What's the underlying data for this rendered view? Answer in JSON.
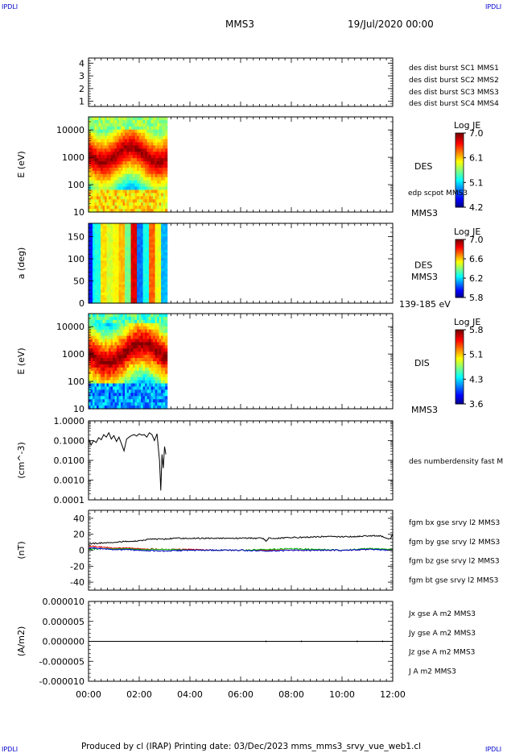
{
  "header": {
    "corner_tl": "IPDLI",
    "corner_tr": "IPDLI",
    "corner_bl": "IPDLI",
    "corner_br": "IPDLI",
    "spacecraft": "MMS3",
    "datetime": "19/Jul/2020 00:00"
  },
  "footer": {
    "text": "Produced by cl (IRAP)   Printing date: 03/Dec/2023   mms_mms3_srvy_vue_web1.cl"
  },
  "colors": {
    "mms1": "#0000cc",
    "mms2": "#cc00cc",
    "mms3": "#dd0000",
    "mms4": "#00bb00",
    "bx": "#dd0000",
    "by": "#00bb00",
    "bz": "#0000cc",
    "bt": "#000000"
  },
  "chart_data": [
    {
      "type": "line",
      "panel": "burst",
      "ylabel": "",
      "yticks": [
        "1",
        "2",
        "3",
        "4"
      ],
      "ylim": [
        0.6,
        4.4
      ],
      "legend": [
        {
          "label": "des dist burst SC1 MMS1",
          "color": "#0000cc"
        },
        {
          "label": "des dist burst SC2 MMS2",
          "color": "#cc00cc"
        },
        {
          "label": "des dist burst SC3 MMS3",
          "color": "#dd0000"
        },
        {
          "label": "des dist burst SC4 MMS4",
          "color": "#00bb00"
        }
      ],
      "series": []
    },
    {
      "type": "heatmap",
      "panel": "des-energy",
      "ylabel": "E (eV)",
      "yscale": "log",
      "ylim": [
        10,
        30000
      ],
      "yticks": [
        "10",
        "100",
        "1000",
        "10000"
      ],
      "data_extent_hours": [
        0,
        3.1
      ],
      "instrument": "DES",
      "overlay_label": "edp scpot MMS3",
      "sc_label": "MMS3",
      "colorbar": {
        "title": "Log JE",
        "ticks": [
          "7.0",
          "6.1",
          "5.1",
          "4.2"
        ],
        "range": [
          4.2,
          7.0
        ]
      }
    },
    {
      "type": "heatmap",
      "panel": "des-pitch",
      "ylabel": "a (deg)",
      "ylim": [
        0,
        180
      ],
      "yticks": [
        "0",
        "50",
        "100",
        "150"
      ],
      "data_extent_hours": [
        0,
        3.1
      ],
      "instrument": "DES",
      "sc_label": "MMS3",
      "energy_label": "139-185 eV",
      "colorbar": {
        "title": "Log JE",
        "ticks": [
          "7.0",
          "6.6",
          "6.2",
          "5.8"
        ],
        "range": [
          5.8,
          7.0
        ]
      }
    },
    {
      "type": "heatmap",
      "panel": "dis-energy",
      "ylabel": "E (eV)",
      "yscale": "log",
      "ylim": [
        10,
        30000
      ],
      "yticks": [
        "10",
        "100",
        "1000",
        "10000"
      ],
      "data_extent_hours": [
        0,
        3.1
      ],
      "instrument": "DIS",
      "sc_label": "MMS3",
      "colorbar": {
        "title": "Log JE",
        "ticks": [
          "5.8",
          "5.1",
          "4.3",
          "3.6"
        ],
        "range": [
          3.6,
          5.8
        ]
      }
    },
    {
      "type": "line",
      "panel": "density",
      "ylabel": "(cm^-3)",
      "yscale": "log",
      "ylim": [
        0.0001,
        1.0
      ],
      "yticks": [
        "0.0001",
        "0.0010",
        "0.0100",
        "0.1000",
        "1.0000"
      ],
      "legend": [
        {
          "label": "des numberdensity fast M",
          "color": "#000000"
        }
      ],
      "series": [
        {
          "name": "des numberdensity fast M",
          "color": "#000000",
          "x": [
            0.0,
            0.1,
            0.2,
            0.3,
            0.4,
            0.5,
            0.6,
            0.7,
            0.8,
            0.9,
            1.0,
            1.1,
            1.2,
            1.3,
            1.4,
            1.5,
            1.6,
            1.7,
            1.8,
            1.9,
            2.0,
            2.1,
            2.2,
            2.3,
            2.4,
            2.5,
            2.6,
            2.7,
            2.8,
            2.85,
            2.9,
            2.95,
            3.0,
            3.05
          ],
          "y": [
            0.12,
            0.06,
            0.1,
            0.08,
            0.14,
            0.11,
            0.2,
            0.15,
            0.25,
            0.12,
            0.18,
            0.09,
            0.15,
            0.07,
            0.03,
            0.12,
            0.15,
            0.18,
            0.2,
            0.17,
            0.22,
            0.19,
            0.2,
            0.15,
            0.25,
            0.2,
            0.1,
            0.22,
            0.01,
            0.0003,
            0.02,
            0.004,
            0.05,
            0.02
          ]
        }
      ]
    },
    {
      "type": "line",
      "panel": "magnetic-field",
      "ylabel": "(nT)",
      "ylim": [
        -50,
        50
      ],
      "yticks": [
        "-40",
        "-20",
        "0",
        "20",
        "40"
      ],
      "legend": [
        {
          "label": "fgm bx gse srvy l2 MMS3",
          "color": "#dd0000"
        },
        {
          "label": "fgm by gse srvy l2 MMS3",
          "color": "#00bb00"
        },
        {
          "label": "fgm bz gse srvy l2 MMS3",
          "color": "#0000cc"
        },
        {
          "label": "fgm bt gse srvy l2 MMS3",
          "color": "#000000"
        }
      ],
      "series": [
        {
          "name": "fgm bt gse srvy l2 MMS3",
          "color": "#000000",
          "x": [
            0,
            0.5,
            1,
            1.5,
            2,
            2.5,
            3,
            3.5,
            4,
            4.5,
            5,
            5.5,
            6,
            6.5,
            6.9,
            7.0,
            7.1,
            7.5,
            8,
            8.5,
            9,
            9.5,
            10,
            10.5,
            11,
            11.5,
            11.9,
            12
          ],
          "y": [
            8,
            9,
            10,
            11,
            12,
            14,
            14,
            15,
            15,
            15,
            15,
            15,
            15,
            15,
            15,
            11,
            15,
            15,
            16,
            16,
            17,
            17,
            17,
            17,
            18,
            18,
            14,
            20
          ]
        },
        {
          "name": "fgm bx gse srvy l2 MMS3",
          "color": "#dd0000",
          "x": [
            0,
            0.5,
            1,
            2,
            3,
            4,
            5,
            6,
            7,
            8,
            9,
            10,
            11,
            12
          ],
          "y": [
            5,
            4,
            3,
            2,
            1,
            1,
            0,
            0,
            0,
            0,
            0,
            0,
            1,
            1
          ]
        },
        {
          "name": "fgm by gse srvy l2 MMS3",
          "color": "#00bb00",
          "x": [
            0,
            0.5,
            1,
            2,
            3,
            4,
            5,
            6,
            7,
            8,
            9,
            10,
            11,
            12
          ],
          "y": [
            1,
            2,
            2,
            1,
            1,
            0,
            0,
            0,
            1,
            2,
            1,
            0,
            2,
            1
          ]
        },
        {
          "name": "fgm bz gse srvy l2 MMS3",
          "color": "#0000cc",
          "x": [
            0,
            0.5,
            1,
            2,
            3,
            4,
            5,
            6,
            7,
            8,
            9,
            10,
            11,
            12
          ],
          "y": [
            3,
            2,
            1,
            0,
            -1,
            0,
            0,
            0,
            -1,
            0,
            0,
            0,
            1,
            0
          ]
        }
      ]
    },
    {
      "type": "line",
      "panel": "current",
      "ylabel": "(A/m2)",
      "ylim": [
        -1e-05,
        1e-05
      ],
      "yticks": [
        "-0.000010",
        "-0.000005",
        "0.000000",
        "0.000005",
        "0.000010"
      ],
      "legend": [
        {
          "label": "Jx gse A m2 MMS3",
          "color": "#dd0000"
        },
        {
          "label": "Jy gse A m2 MMS3",
          "color": "#00bb00"
        },
        {
          "label": "Jz gse A m2 MMS3",
          "color": "#0000cc"
        },
        {
          "label": "J A m2 MMS3",
          "color": "#000000"
        }
      ],
      "series": [
        {
          "name": "J A m2 MMS3",
          "color": "#000000",
          "x": [
            0,
            12
          ],
          "y": [
            0,
            0
          ]
        }
      ]
    }
  ],
  "xaxis": {
    "ticks": [
      "00:00",
      "02:00",
      "04:00",
      "06:00",
      "08:00",
      "10:00",
      "12:00"
    ],
    "range_hours": [
      0,
      12
    ]
  }
}
